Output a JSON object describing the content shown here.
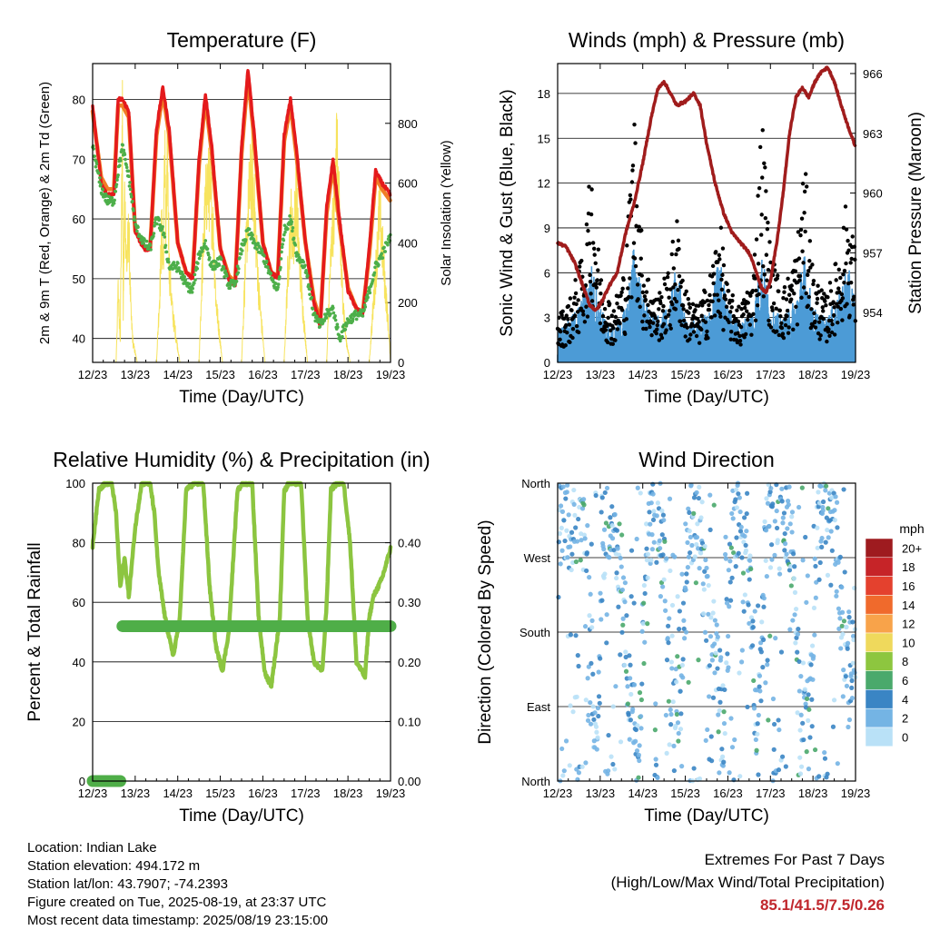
{
  "chart_data": [
    {
      "type": "line",
      "title": "Temperature (F)",
      "xlabel": "Time (Day/UTC)",
      "ylabel_left": "2m & 9m T (Red, Orange) & 2m Td (Green)",
      "ylabel_right": "Solar Insolation (Yellow)",
      "x_ticks": [
        "12/23",
        "13/23",
        "14/23",
        "15/23",
        "16/23",
        "17/23",
        "18/23",
        "19/23"
      ],
      "ylim_left": [
        36,
        86
      ],
      "yticks_left": [
        40,
        50,
        60,
        70,
        80
      ],
      "ylim_right": [
        0,
        1000
      ],
      "yticks_right": [
        0,
        200,
        400,
        600,
        800
      ],
      "colors": {
        "t2m": "#e41a1c",
        "t9m": "#f07e26",
        "td": "#4daf4a",
        "solar": "#f6e04b"
      },
      "series": [
        {
          "name": "2m T",
          "axis": "left",
          "x": [
            12.0,
            12.2,
            12.35,
            12.5,
            12.6,
            12.7,
            12.85,
            13.0,
            13.2,
            13.35,
            13.5,
            13.65,
            13.8,
            14.0,
            14.2,
            14.35,
            14.5,
            14.65,
            14.8,
            15.0,
            15.2,
            15.35,
            15.5,
            15.65,
            15.8,
            16.0,
            16.2,
            16.35,
            16.5,
            16.65,
            16.8,
            17.0,
            17.2,
            17.35,
            17.5,
            17.65,
            17.8,
            18.0,
            18.2,
            18.35,
            18.5,
            18.65,
            18.8,
            19.0
          ],
          "values": [
            79,
            66,
            64,
            64,
            80,
            80,
            78,
            58,
            55,
            55,
            75,
            82,
            75,
            56,
            51,
            50,
            70,
            81,
            72,
            55,
            50,
            49,
            72,
            85,
            74,
            56,
            51,
            50,
            74,
            80,
            71,
            56,
            46,
            42,
            62,
            70,
            60,
            48,
            45,
            44,
            55,
            68,
            66,
            64
          ]
        },
        {
          "name": "9m T",
          "axis": "left",
          "x": [
            12.0,
            12.2,
            12.35,
            12.5,
            12.6,
            12.7,
            12.85,
            13.0,
            13.2,
            13.35,
            13.5,
            13.65,
            13.8,
            14.0,
            14.2,
            14.35,
            14.5,
            14.65,
            14.8,
            15.0,
            15.2,
            15.35,
            15.5,
            15.65,
            15.8,
            16.0,
            16.2,
            16.35,
            16.5,
            16.65,
            16.8,
            17.0,
            17.2,
            17.35,
            17.5,
            17.65,
            17.8,
            18.0,
            18.2,
            18.35,
            18.5,
            18.65,
            18.8,
            19.0
          ],
          "values": [
            78,
            67,
            65,
            65,
            79,
            79,
            77,
            58,
            55.5,
            55,
            74,
            81,
            74,
            56,
            51,
            50.5,
            69,
            80,
            71,
            55,
            50.5,
            49.5,
            71,
            84,
            73,
            56,
            51,
            50.5,
            73,
            79,
            70,
            56,
            46.5,
            43,
            61,
            69,
            59,
            48.5,
            45,
            44.5,
            54,
            67,
            65,
            63
          ]
        },
        {
          "name": "2m Td",
          "axis": "left",
          "x": [
            12.0,
            12.2,
            12.35,
            12.5,
            12.6,
            12.7,
            12.85,
            13.0,
            13.2,
            13.35,
            13.5,
            13.65,
            13.8,
            14.0,
            14.2,
            14.35,
            14.5,
            14.65,
            14.8,
            15.0,
            15.2,
            15.35,
            15.5,
            15.65,
            15.8,
            16.0,
            16.2,
            16.35,
            16.5,
            16.65,
            16.8,
            17.0,
            17.2,
            17.35,
            17.5,
            17.65,
            17.8,
            18.0,
            18.2,
            18.35,
            18.5,
            18.65,
            18.8,
            19.0
          ],
          "values": [
            72,
            65,
            63,
            63,
            68,
            72,
            67,
            59,
            56,
            55,
            60,
            58,
            52,
            52,
            49,
            48,
            54,
            56,
            52,
            53,
            49,
            49,
            55,
            58,
            56,
            54,
            50,
            48,
            58,
            60,
            54,
            52,
            44,
            42,
            44,
            45,
            40,
            43,
            44,
            44,
            48,
            52,
            54,
            57
          ]
        },
        {
          "name": "Solar Insolation",
          "axis": "right",
          "x": [
            12.0,
            12.55,
            12.6,
            12.65,
            12.68,
            12.7,
            12.72,
            12.75,
            12.8,
            12.85,
            12.9,
            12.95,
            13.05,
            13.5,
            13.58,
            13.62,
            13.66,
            13.7,
            13.72,
            13.76,
            13.8,
            13.88,
            14.05,
            14.5,
            14.58,
            14.65,
            14.7,
            14.76,
            14.82,
            14.9,
            15.05,
            15.5,
            15.6,
            15.68,
            15.74,
            15.8,
            15.9,
            16.05,
            16.5,
            16.58,
            16.66,
            16.72,
            16.78,
            16.85,
            16.95,
            17.05,
            17.5,
            17.56,
            17.62,
            17.68,
            17.72,
            17.78,
            17.85,
            17.95,
            18.05,
            18.5,
            18.58,
            18.64,
            18.7,
            18.74,
            18.8,
            18.86,
            18.95,
            19.0
          ],
          "values": [
            0,
            0,
            300,
            100,
            650,
            950,
            200,
            700,
            400,
            550,
            200,
            80,
            0,
            0,
            300,
            550,
            400,
            950,
            500,
            850,
            400,
            200,
            0,
            0,
            400,
            650,
            750,
            700,
            600,
            250,
            0,
            0,
            450,
            700,
            800,
            650,
            300,
            0,
            0,
            350,
            600,
            500,
            700,
            450,
            200,
            0,
            0,
            300,
            500,
            650,
            950,
            700,
            350,
            100,
            0,
            0,
            200,
            350,
            500,
            650,
            500,
            350,
            150,
            0
          ]
        }
      ]
    },
    {
      "type": "scatter",
      "title": "Winds (mph) & Pressure (mb)",
      "xlabel": "Time (Day/UTC)",
      "ylabel_left": "Sonic Wind & Gust (Blue, Black)",
      "ylabel_right": "Station Pressure (Maroon)",
      "x_ticks": [
        "12/23",
        "13/23",
        "14/23",
        "15/23",
        "16/23",
        "17/23",
        "18/23",
        "19/23"
      ],
      "ylim_left": [
        0,
        20
      ],
      "yticks_left": [
        0,
        3,
        6,
        9,
        12,
        15,
        18
      ],
      "ylim_right": [
        951.5,
        966.5
      ],
      "yticks_right": [
        954,
        957,
        960,
        963,
        966
      ],
      "colors": {
        "wind": "#4c9bd6",
        "gust": "#000000",
        "pressure": "#a01c1c"
      },
      "series": [
        {
          "name": "Sonic Wind",
          "x": [
            12.0,
            12.3,
            12.6,
            12.8,
            13.0,
            13.3,
            13.6,
            13.8,
            14.0,
            14.3,
            14.6,
            14.8,
            15.0,
            15.3,
            15.6,
            15.8,
            16.0,
            16.3,
            16.6,
            16.8,
            17.0,
            17.3,
            17.6,
            17.8,
            18.0,
            18.3,
            18.6,
            18.8,
            19.0
          ],
          "values": [
            1.5,
            2,
            3,
            4.5,
            2.5,
            1.5,
            2.5,
            5.5,
            3,
            2,
            2.5,
            4.5,
            2,
            1.8,
            2.5,
            5,
            2.5,
            1.8,
            2.5,
            5,
            2.5,
            2,
            3,
            5,
            2.5,
            2,
            3,
            4.5,
            3
          ]
        },
        {
          "name": "Gust",
          "x": [
            12.0,
            12.3,
            12.6,
            12.8,
            13.0,
            13.3,
            13.6,
            13.8,
            14.0,
            14.3,
            14.6,
            14.8,
            15.0,
            15.3,
            15.6,
            15.8,
            16.0,
            16.3,
            16.6,
            16.8,
            17.0,
            17.3,
            17.6,
            17.8,
            18.0,
            18.3,
            18.6,
            18.8,
            19.0
          ],
          "values": [
            2.5,
            3.5,
            6,
            11,
            5,
            3,
            5.5,
            14,
            6,
            3.5,
            5,
            8,
            4,
            3,
            5,
            8,
            4,
            3,
            5,
            14,
            6,
            4,
            6,
            11,
            5,
            3.5,
            6,
            9,
            6
          ]
        },
        {
          "name": "Station Pressure",
          "x": [
            12.0,
            12.2,
            12.4,
            12.6,
            12.75,
            12.9,
            13.05,
            13.2,
            13.4,
            13.6,
            13.8,
            14.0,
            14.2,
            14.35,
            14.5,
            14.65,
            14.8,
            15.0,
            15.2,
            15.35,
            15.5,
            15.7,
            15.9,
            16.1,
            16.3,
            16.5,
            16.6,
            16.7,
            16.8,
            16.9,
            17.0,
            17.15,
            17.3,
            17.45,
            17.6,
            17.75,
            17.9,
            18.05,
            18.2,
            18.35,
            18.5,
            18.65,
            18.8,
            19.0
          ],
          "values": [
            957.5,
            957.3,
            956.5,
            955.3,
            954.4,
            954.1,
            954.6,
            955.3,
            956.0,
            958.0,
            959.5,
            961.5,
            963.8,
            965.2,
            965.6,
            965.0,
            964.4,
            964.6,
            965.0,
            964.4,
            962.5,
            960.5,
            959.0,
            958.0,
            957.5,
            957.0,
            956.5,
            955.8,
            955.2,
            955.0,
            955.6,
            957.5,
            960.0,
            963.0,
            964.8,
            965.3,
            964.8,
            965.6,
            966.1,
            966.3,
            965.6,
            964.5,
            963.5,
            962.3
          ]
        }
      ]
    },
    {
      "type": "line",
      "title": "Relative Humidity (%) & Precipitation (in)",
      "xlabel": "Time (Day/UTC)",
      "ylabel_left": "Percent & Total Rainfall",
      "x_ticks": [
        "12/23",
        "13/23",
        "14/23",
        "15/23",
        "16/23",
        "17/23",
        "18/23",
        "19/23"
      ],
      "ylim_left": [
        0,
        100
      ],
      "yticks_left": [
        0,
        20,
        40,
        60,
        80,
        100
      ],
      "ylim_right": [
        0,
        0.5
      ],
      "yticks_right_labels": [
        "0.00",
        "0.10",
        "0.20",
        "0.30",
        "0.40"
      ],
      "colors": {
        "rh": "#8cc540",
        "precip": "#4fae48"
      },
      "series": [
        {
          "name": "Relative Humidity",
          "axis": "left",
          "x": [
            12.0,
            12.15,
            12.3,
            12.45,
            12.55,
            12.65,
            12.75,
            12.85,
            13.0,
            13.15,
            13.35,
            13.45,
            13.55,
            13.7,
            13.8,
            13.9,
            14.05,
            14.2,
            14.4,
            14.5,
            14.6,
            14.75,
            14.9,
            15.05,
            15.2,
            15.4,
            15.5,
            15.6,
            15.75,
            15.9,
            16.05,
            16.2,
            16.4,
            16.5,
            16.6,
            16.75,
            16.9,
            17.05,
            17.2,
            17.4,
            17.5,
            17.6,
            17.75,
            17.9,
            18.05,
            18.2,
            18.4,
            18.5,
            18.6,
            18.8,
            19.0
          ],
          "values": [
            79,
            98,
            100,
            100,
            90,
            65,
            75,
            62,
            85,
            100,
            100,
            90,
            70,
            55,
            48,
            42,
            55,
            98,
            100,
            100,
            100,
            65,
            45,
            37,
            50,
            97,
            100,
            100,
            100,
            55,
            36,
            32,
            55,
            97,
            100,
            100,
            100,
            55,
            40,
            37,
            60,
            98,
            100,
            100,
            80,
            40,
            35,
            55,
            62,
            68,
            78
          ]
        },
        {
          "name": "Total Precipitation",
          "axis": "right",
          "x": [
            12.0,
            12.65,
            12.7,
            19.0
          ],
          "values": [
            0.0,
            0.0,
            0.26,
            0.26
          ]
        }
      ]
    },
    {
      "type": "scatter",
      "title": "Wind Direction",
      "xlabel": "Time (Day/UTC)",
      "ylabel": "Direction (Colored By Speed)",
      "x_ticks": [
        "12/23",
        "13/23",
        "14/23",
        "15/23",
        "16/23",
        "17/23",
        "18/23",
        "19/23"
      ],
      "y_ticks": [
        "North",
        "East",
        "South",
        "West",
        "North"
      ],
      "ylim": [
        0,
        360
      ],
      "legend": {
        "title": "mph",
        "labels": [
          "20+",
          "18",
          "16",
          "14",
          "12",
          "10",
          "8",
          "6",
          "4",
          "2",
          "0"
        ],
        "colors": [
          "#9e1b1f",
          "#c62428",
          "#e4412e",
          "#f06a2c",
          "#f8a34a",
          "#efd95c",
          "#8dc63f",
          "#4aa96c",
          "#3a85c4",
          "#74b4e4",
          "#b9e1f7"
        ]
      },
      "series": [
        {
          "name": "Wind Direction",
          "x": [
            12.1,
            12.3,
            12.5,
            12.7,
            12.9,
            13.1,
            13.3,
            13.5,
            13.7,
            13.9,
            14.1,
            14.3,
            14.5,
            14.7,
            14.9,
            15.1,
            15.3,
            15.5,
            15.7,
            15.9,
            16.1,
            16.3,
            16.5,
            16.7,
            16.9,
            17.1,
            17.3,
            17.5,
            17.7,
            17.9,
            18.1,
            18.3,
            18.5,
            18.7,
            18.9
          ],
          "values": [
            320,
            300,
            330,
            280,
            20,
            310,
            340,
            250,
            90,
            20,
            300,
            330,
            280,
            60,
            120,
            300,
            330,
            200,
            150,
            60,
            300,
            320,
            250,
            40,
            300,
            330,
            350,
            270,
            80,
            50,
            320,
            330,
            300,
            180,
            150
          ]
        }
      ]
    }
  ],
  "footer": {
    "location": "Location: Indian Lake",
    "elevation": "Station elevation: 494.172 m",
    "latlon": "Station lat/lon: 43.7907; -74.2393",
    "created": "Figure created on Tue, 2025-08-19, at 23:37 UTC",
    "recent": "Most recent data timestamp: 2025/08/19 23:15:00"
  },
  "extremes": {
    "title": "Extremes For Past 7 Days",
    "subtitle": "(High/Low/Max Wind/Total Precipitation)",
    "values": "85.1/41.5/7.5/0.26"
  }
}
